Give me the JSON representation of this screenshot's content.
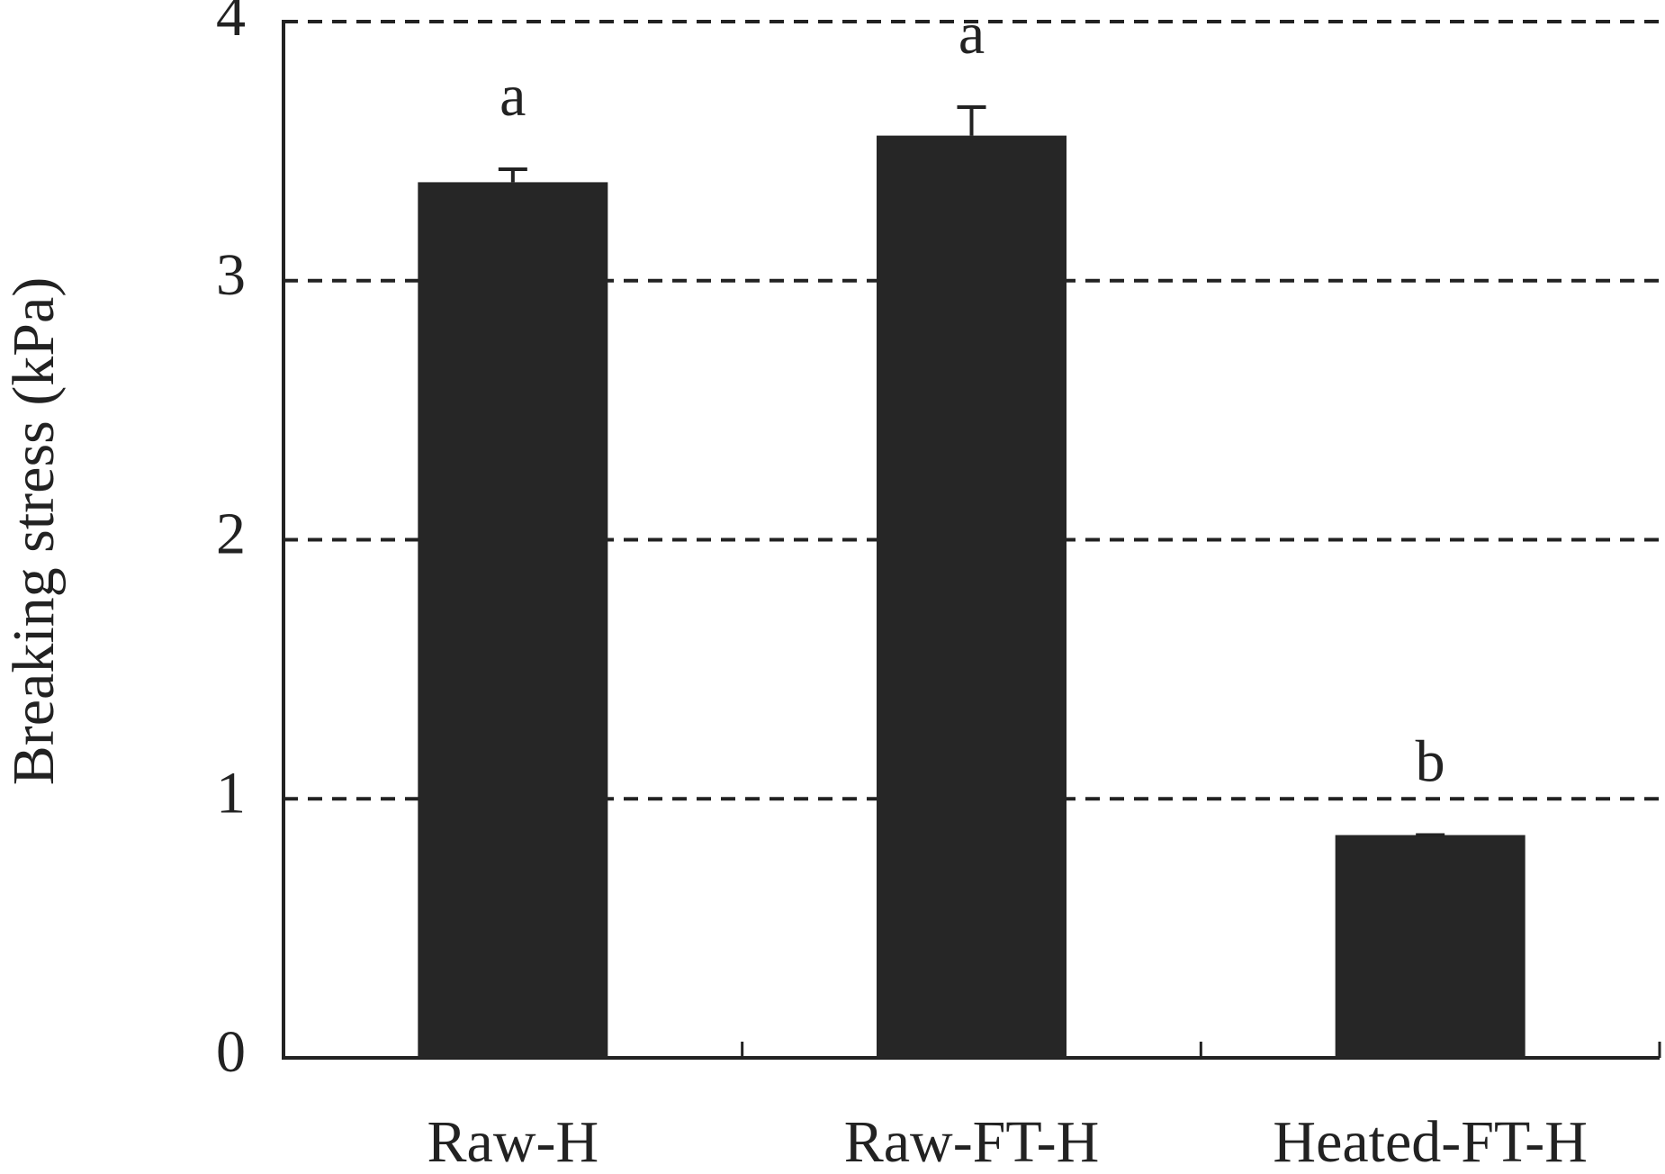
{
  "chart_data": {
    "type": "bar",
    "y_label": "Breaking stress (kPa)",
    "categories": [
      "Raw-H",
      "Raw-FT-H",
      "Heated-FT-H"
    ],
    "values": [
      3.38,
      3.56,
      0.86
    ],
    "errors": [
      0.05,
      0.11,
      0
    ],
    "annotations": [
      "a",
      "a",
      "b"
    ],
    "color": "#262626",
    "ylim": [
      0,
      4
    ],
    "yticks": [
      0,
      1,
      2,
      3,
      4
    ],
    "grid": true
  }
}
